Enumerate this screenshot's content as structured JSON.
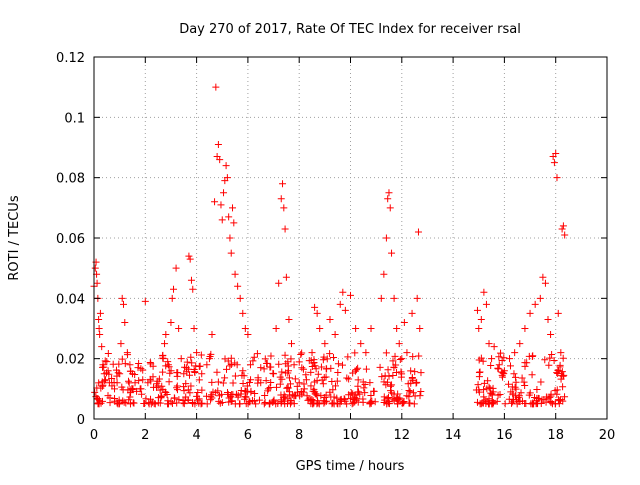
{
  "chart_data": {
    "type": "scatter",
    "title": "Day 270 of 2017, Rate Of TEC Index for receiver rsal",
    "xlabel": "GPS time / hours",
    "ylabel": "ROTI / TECUs",
    "xlim": [
      0,
      20
    ],
    "ylim": [
      0,
      0.12
    ],
    "x_ticks": [
      0,
      2,
      4,
      6,
      8,
      10,
      12,
      14,
      16,
      18,
      20
    ],
    "x_tick_labels": [
      "0",
      "2",
      "4",
      "6",
      "8",
      "10",
      "12",
      "14",
      "16",
      "18",
      "20"
    ],
    "y_ticks": [
      0,
      0.02,
      0.04,
      0.06,
      0.08,
      0.1,
      0.12
    ],
    "y_tick_labels": [
      "0",
      "0.02",
      "0.04",
      "0.06",
      "0.08",
      "0.1",
      "0.12"
    ],
    "grid": true,
    "marker": "+",
    "color": "#ff0000",
    "series": [
      {
        "points": [
          [
            0.0,
            0.044
          ],
          [
            0.05,
            0.05
          ],
          [
            0.08,
            0.052
          ],
          [
            0.1,
            0.048
          ],
          [
            0.12,
            0.045
          ],
          [
            0.15,
            0.04
          ],
          [
            0.18,
            0.033
          ],
          [
            0.2,
            0.03
          ],
          [
            0.22,
            0.028
          ],
          [
            0.25,
            0.035
          ],
          [
            0.3,
            0.024
          ],
          [
            0.35,
            0.018
          ],
          [
            0.4,
            0.015
          ],
          [
            0.45,
            0.013
          ],
          [
            0.5,
            0.019
          ],
          [
            0.55,
            0.016
          ],
          [
            0.6,
            0.012
          ],
          [
            0.7,
            0.011
          ],
          [
            0.8,
            0.01
          ],
          [
            0.9,
            0.012
          ],
          [
            1.0,
            0.015
          ],
          [
            1.05,
            0.025
          ],
          [
            1.1,
            0.04
          ],
          [
            1.15,
            0.038
          ],
          [
            1.2,
            0.032
          ],
          [
            1.3,
            0.022
          ],
          [
            1.4,
            0.018
          ],
          [
            1.5,
            0.015
          ],
          [
            1.6,
            0.012
          ],
          [
            1.8,
            0.01
          ],
          [
            1.9,
            0.013
          ],
          [
            2.0,
            0.039
          ],
          [
            2.1,
            0.012
          ],
          [
            2.3,
            0.014
          ],
          [
            2.5,
            0.011
          ],
          [
            2.7,
            0.02
          ],
          [
            2.75,
            0.025
          ],
          [
            2.8,
            0.028
          ],
          [
            2.9,
            0.018
          ],
          [
            3.0,
            0.032
          ],
          [
            3.05,
            0.04
          ],
          [
            3.1,
            0.043
          ],
          [
            3.2,
            0.05
          ],
          [
            3.3,
            0.03
          ],
          [
            3.4,
            0.02
          ],
          [
            3.5,
            0.015
          ],
          [
            3.6,
            0.017
          ],
          [
            3.7,
            0.054
          ],
          [
            3.75,
            0.053
          ],
          [
            3.8,
            0.046
          ],
          [
            3.85,
            0.043
          ],
          [
            3.9,
            0.03
          ],
          [
            4.0,
            0.022
          ],
          [
            4.2,
            0.015
          ],
          [
            4.4,
            0.018
          ],
          [
            4.5,
            0.02
          ],
          [
            4.6,
            0.028
          ],
          [
            4.7,
            0.072
          ],
          [
            4.75,
            0.11
          ],
          [
            4.8,
            0.087
          ],
          [
            4.85,
            0.091
          ],
          [
            4.9,
            0.086
          ],
          [
            4.95,
            0.071
          ],
          [
            5.0,
            0.066
          ],
          [
            5.05,
            0.075
          ],
          [
            5.1,
            0.079
          ],
          [
            5.15,
            0.084
          ],
          [
            5.2,
            0.08
          ],
          [
            5.25,
            0.067
          ],
          [
            5.3,
            0.06
          ],
          [
            5.35,
            0.055
          ],
          [
            5.4,
            0.07
          ],
          [
            5.45,
            0.065
          ],
          [
            5.5,
            0.048
          ],
          [
            5.6,
            0.044
          ],
          [
            5.7,
            0.04
          ],
          [
            5.8,
            0.035
          ],
          [
            5.9,
            0.03
          ],
          [
            6.0,
            0.028
          ],
          [
            6.1,
            0.018
          ],
          [
            6.5,
            0.012
          ],
          [
            6.8,
            0.01
          ],
          [
            7.0,
            0.015
          ],
          [
            7.1,
            0.03
          ],
          [
            7.2,
            0.045
          ],
          [
            7.3,
            0.073
          ],
          [
            7.35,
            0.078
          ],
          [
            7.4,
            0.07
          ],
          [
            7.45,
            0.063
          ],
          [
            7.5,
            0.047
          ],
          [
            7.6,
            0.033
          ],
          [
            7.7,
            0.025
          ],
          [
            7.8,
            0.018
          ],
          [
            8.0,
            0.012
          ],
          [
            8.2,
            0.01
          ],
          [
            8.5,
            0.022
          ],
          [
            8.6,
            0.037
          ],
          [
            8.7,
            0.035
          ],
          [
            8.8,
            0.03
          ],
          [
            9.0,
            0.025
          ],
          [
            9.2,
            0.033
          ],
          [
            9.4,
            0.028
          ],
          [
            9.6,
            0.038
          ],
          [
            9.7,
            0.042
          ],
          [
            9.8,
            0.036
          ],
          [
            10.0,
            0.041
          ],
          [
            10.2,
            0.03
          ],
          [
            10.4,
            0.025
          ],
          [
            10.6,
            0.022
          ],
          [
            10.8,
            0.03
          ],
          [
            11.2,
            0.04
          ],
          [
            11.3,
            0.048
          ],
          [
            11.4,
            0.06
          ],
          [
            11.45,
            0.073
          ],
          [
            11.5,
            0.075
          ],
          [
            11.55,
            0.07
          ],
          [
            11.6,
            0.055
          ],
          [
            11.7,
            0.04
          ],
          [
            11.8,
            0.03
          ],
          [
            11.9,
            0.025
          ],
          [
            12.0,
            0.02
          ],
          [
            12.1,
            0.032
          ],
          [
            12.2,
            0.022
          ],
          [
            12.4,
            0.035
          ],
          [
            12.6,
            0.04
          ],
          [
            12.65,
            0.062
          ],
          [
            12.7,
            0.03
          ],
          [
            14.95,
            0.036
          ],
          [
            15.0,
            0.03
          ],
          [
            15.1,
            0.033
          ],
          [
            15.2,
            0.042
          ],
          [
            15.3,
            0.038
          ],
          [
            15.4,
            0.025
          ],
          [
            15.5,
            0.02
          ],
          [
            15.6,
            0.024
          ],
          [
            15.8,
            0.018
          ],
          [
            16.0,
            0.016
          ],
          [
            16.2,
            0.02
          ],
          [
            16.4,
            0.022
          ],
          [
            16.6,
            0.025
          ],
          [
            16.8,
            0.03
          ],
          [
            17.0,
            0.035
          ],
          [
            17.2,
            0.038
          ],
          [
            17.4,
            0.04
          ],
          [
            17.5,
            0.047
          ],
          [
            17.6,
            0.045
          ],
          [
            17.7,
            0.033
          ],
          [
            17.8,
            0.028
          ],
          [
            17.9,
            0.087
          ],
          [
            17.95,
            0.085
          ],
          [
            18.0,
            0.088
          ],
          [
            18.05,
            0.08
          ],
          [
            18.1,
            0.035
          ],
          [
            18.2,
            0.022
          ],
          [
            18.25,
            0.063
          ],
          [
            18.3,
            0.064
          ],
          [
            18.35,
            0.061
          ]
        ],
        "dense_baseline": [
          {
            "x_range": [
              0.0,
              12.8
            ],
            "y_range": [
              0.005,
              0.022
            ],
            "count": 520
          },
          {
            "x_range": [
              14.9,
              18.4
            ],
            "y_range": [
              0.005,
              0.022
            ],
            "count": 150
          }
        ]
      }
    ]
  }
}
